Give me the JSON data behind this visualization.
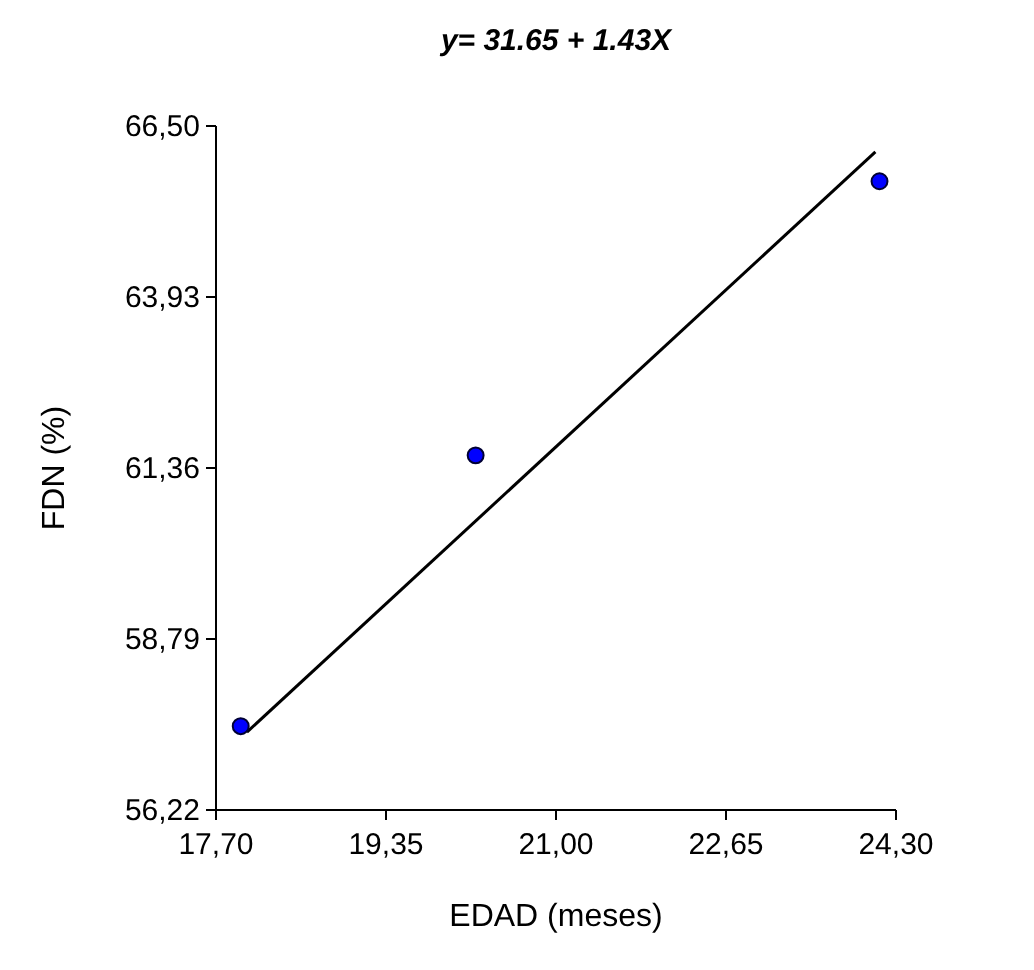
{
  "chart_data": {
    "type": "scatter",
    "title": "y= 31.65 + 1.43X",
    "xlabel": "EDAD (meses)",
    "ylabel": "FDN (%)",
    "xlim": [
      17.7,
      24.3
    ],
    "ylim": [
      56.22,
      66.5
    ],
    "xticks": [
      {
        "value": 17.7,
        "label": "17,70"
      },
      {
        "value": 19.35,
        "label": "19,35"
      },
      {
        "value": 21.0,
        "label": "21,00"
      },
      {
        "value": 22.65,
        "label": "22,65"
      },
      {
        "value": 24.3,
        "label": "24,30"
      }
    ],
    "yticks": [
      {
        "value": 56.22,
        "label": "56,22"
      },
      {
        "value": 58.79,
        "label": "58,79"
      },
      {
        "value": 61.36,
        "label": "61,36"
      },
      {
        "value": 63.93,
        "label": "63,93"
      },
      {
        "value": 66.5,
        "label": "66,50"
      }
    ],
    "grid": false,
    "series": [
      {
        "marker": "circle",
        "color": "#0000ff",
        "x": [
          17.94,
          20.22,
          24.14
        ],
        "values": [
          57.48,
          61.55,
          65.67
        ]
      },
      {
        "type": "line",
        "color": "#000000",
        "x": [
          18.0,
          24.1
        ],
        "values": [
          57.39,
          66.11
        ]
      }
    ]
  }
}
